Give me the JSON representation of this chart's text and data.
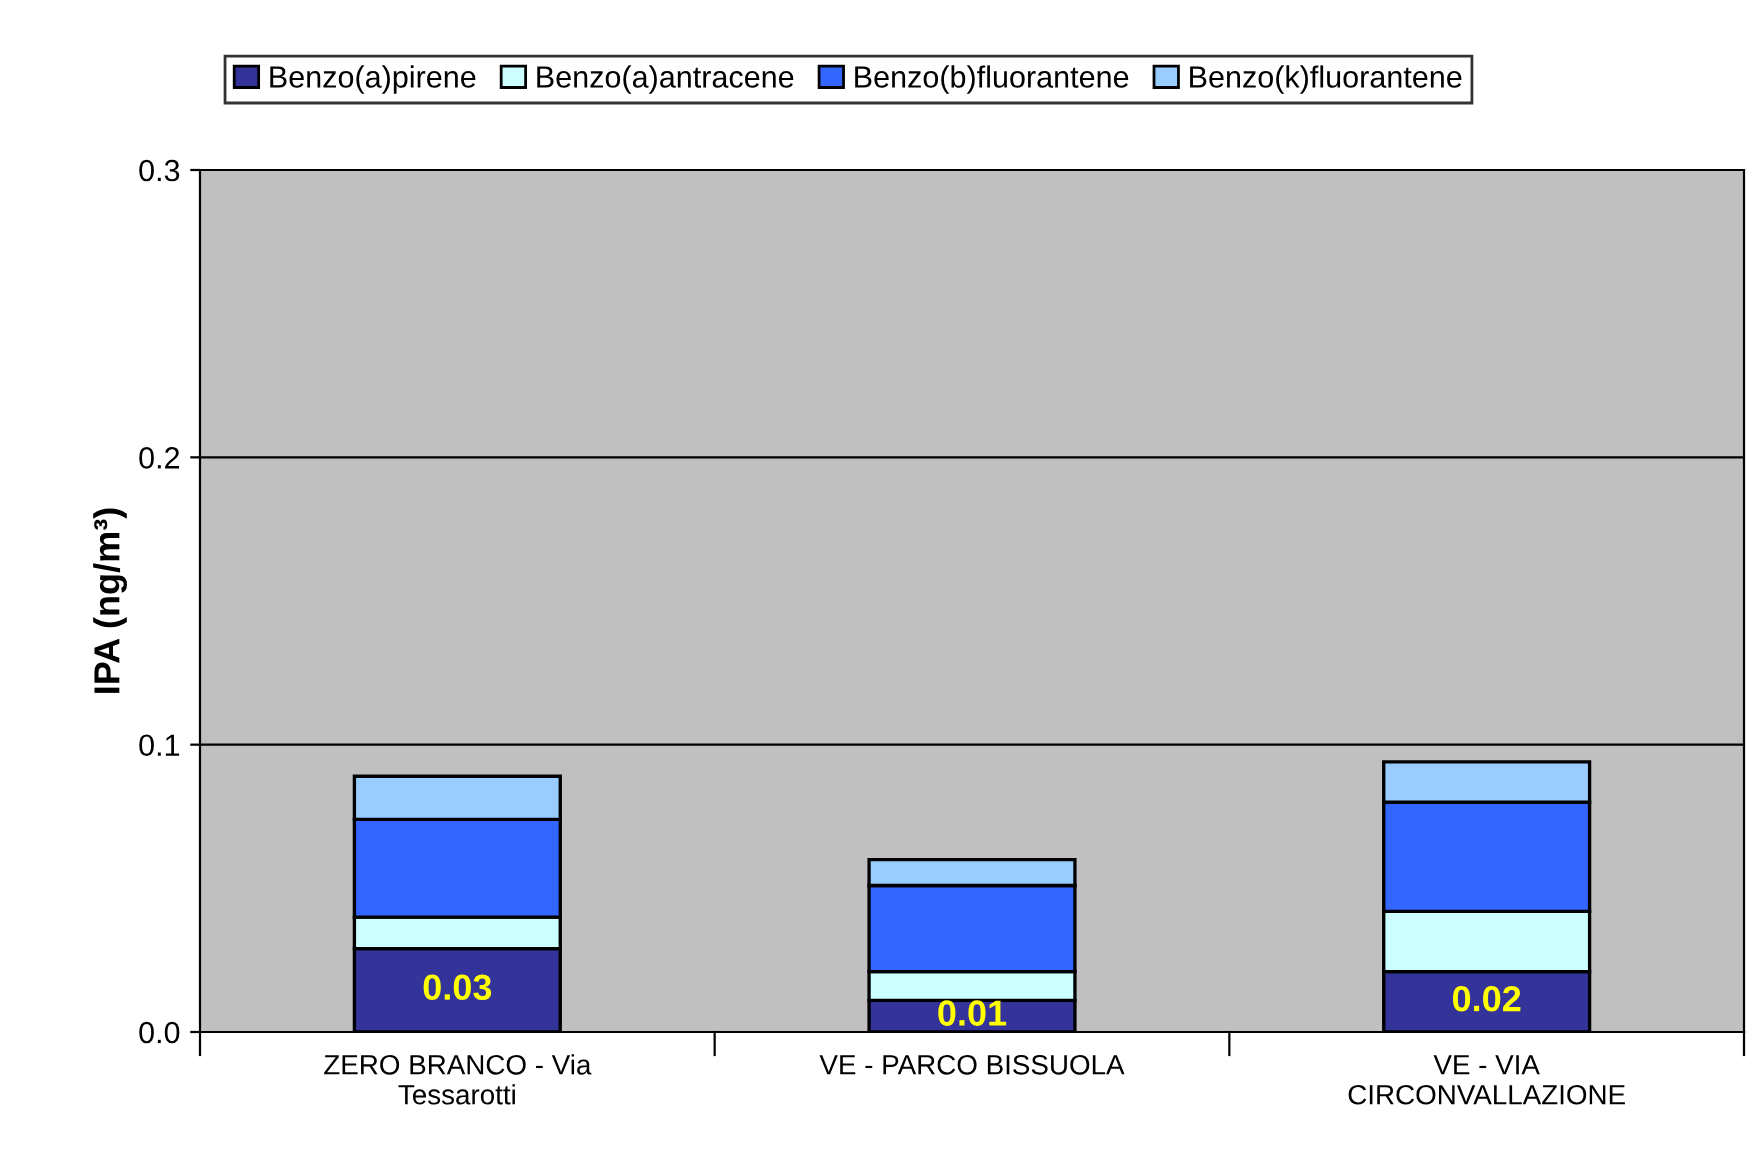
{
  "chart_data": {
    "type": "bar",
    "stacked": true,
    "ylabel": "IPA (ng/m³)",
    "categories": [
      "ZERO BRANCO - Via\nTessarotti",
      "VE - PARCO BISSUOLA",
      "VE - VIA\nCIRCONVALLAZIONE"
    ],
    "series": [
      {
        "name": "Benzo(a)pirene",
        "color": "#333399",
        "values": [
          0.029,
          0.011,
          0.021
        ],
        "value_labels": [
          "0.03",
          "0.01",
          "0.02"
        ]
      },
      {
        "name": "Benzo(a)antracene",
        "color": "#ccffff",
        "values": [
          0.011,
          0.01,
          0.021
        ]
      },
      {
        "name": "Benzo(b)fluorantene",
        "color": "#3366ff",
        "values": [
          0.034,
          0.03,
          0.038
        ]
      },
      {
        "name": "Benzo(k)fluorantene",
        "color": "#99ccff",
        "values": [
          0.015,
          0.009,
          0.014
        ]
      }
    ],
    "ylim": [
      0,
      0.3
    ],
    "yticks": [
      {
        "value": 0,
        "label": "0.0"
      },
      0.1,
      0.2,
      0.3
    ],
    "grid": "y",
    "legend": "top"
  }
}
